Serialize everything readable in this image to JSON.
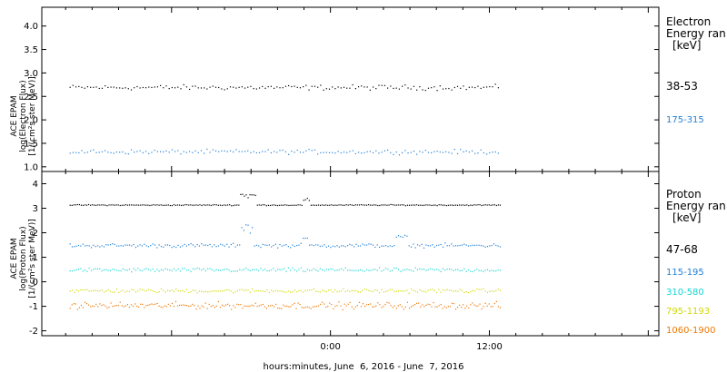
{
  "chart_data": [
    {
      "type": "scatter",
      "panel": "electron",
      "ylabel_lines": [
        "ACE EPAM",
        "log(Electron Flux)",
        "[1/(cm²s ster MeV)]"
      ],
      "ylim": [
        0.9,
        4.4
      ],
      "yticks": [
        "1.0",
        "1.5",
        "2.0",
        "2.5",
        "3.0",
        "3.5",
        "4.0"
      ],
      "ytick_values": [
        1.0,
        1.5,
        2.0,
        2.5,
        3.0,
        3.5,
        4.0
      ],
      "legend_title_lines": [
        "Electron",
        "Energy ran",
        "[keV]"
      ],
      "series": [
        {
          "name": "38-53",
          "color": "#000000",
          "x_hours": [
            -19.7,
            12.8
          ],
          "level": 2.7,
          "spread": 0.08,
          "stride": 0.22
        },
        {
          "name": "175-315",
          "color": "#1f7fd6",
          "x_hours": [
            -19.7,
            12.8
          ],
          "level": 1.33,
          "spread": 0.07,
          "stride": 0.22
        }
      ]
    },
    {
      "type": "scatter",
      "panel": "proton",
      "ylabel_lines": [
        "ACE EPAM",
        "log(Proton Flux)",
        "[1/(cm²s ster MeV)]"
      ],
      "ylim": [
        -2.2,
        4.5
      ],
      "yticks": [
        "-2",
        "-1",
        "0",
        "1",
        "2",
        "3",
        "4"
      ],
      "ytick_values": [
        -2,
        -1,
        0,
        1,
        2,
        3,
        4
      ],
      "legend_title_lines": [
        "Proton",
        "Energy ran",
        "[keV]"
      ],
      "series": [
        {
          "name": "47-68",
          "color": "#000000",
          "x_hours": [
            -19.7,
            12.8
          ],
          "level": 3.15,
          "spread": 0.03,
          "stride": 0.14
        },
        {
          "name": "115-195",
          "color": "#1f7fd6",
          "x_hours": [
            -19.7,
            12.8
          ],
          "level": 1.5,
          "spread": 0.12,
          "stride": 0.16
        },
        {
          "name": "310-580",
          "color": "#17d4d4",
          "x_hours": [
            -19.7,
            12.8
          ],
          "level": 0.5,
          "spread": 0.12,
          "stride": 0.16
        },
        {
          "name": "795-1193",
          "color": "#cfd900",
          "x_hours": [
            -19.7,
            12.8
          ],
          "level": -0.35,
          "spread": 0.12,
          "stride": 0.16
        },
        {
          "name": "1060-1900",
          "color": "#f07800",
          "x_hours": [
            -19.7,
            12.8
          ],
          "level": -0.95,
          "spread": 0.2,
          "stride": 0.14
        }
      ]
    }
  ],
  "x_axis": {
    "title": "hours:minutes, June  6, 2016 - June  7, 2016",
    "xlim_hours": [
      -21.8,
      24.8
    ],
    "tick_labels": [
      "0:00",
      "12:00"
    ],
    "tick_hours": [
      0,
      12
    ]
  },
  "colors": {
    "axes": "#000000",
    "background": "#ffffff"
  }
}
